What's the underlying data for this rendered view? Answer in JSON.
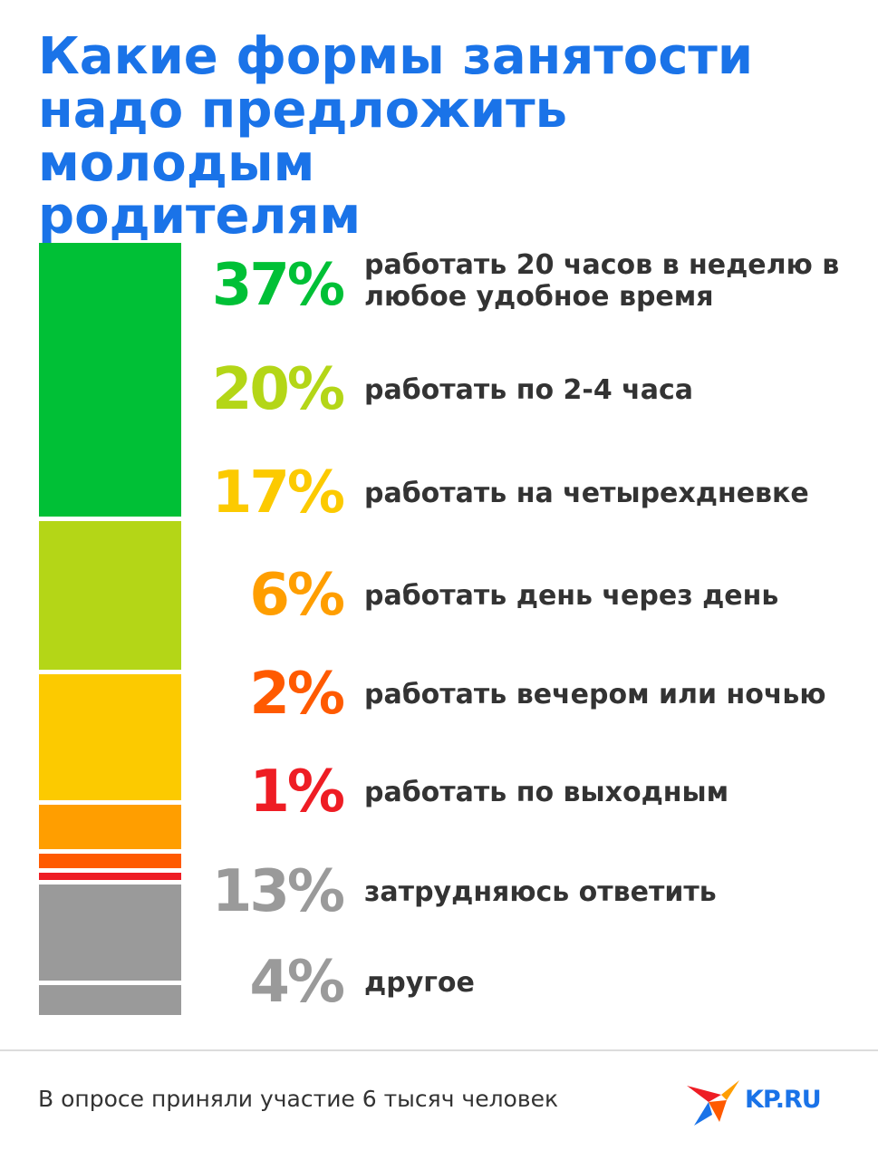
{
  "title_lines": [
    "Какие формы занятости",
    "надо предложить молодым",
    "родителям"
  ],
  "chart_data": {
    "type": "bar",
    "subtype": "stacked-single-column",
    "unit": "%",
    "items": [
      {
        "value": 37,
        "value_label": "37%",
        "label": "работать 20 часов в неделю в любое удобное время",
        "color": "#00c036"
      },
      {
        "value": 20,
        "value_label": "20%",
        "label": "работать по 2-4 часа",
        "color": "#b4d617"
      },
      {
        "value": 17,
        "value_label": "17%",
        "label": "работать на четырехдневке",
        "color": "#fcca00"
      },
      {
        "value": 6,
        "value_label": "6%",
        "label": "работать день через день",
        "color": "#ff9e00"
      },
      {
        "value": 2,
        "value_label": "2%",
        "label": "работать вечером или ночью",
        "color": "#ff5a00"
      },
      {
        "value": 1,
        "value_label": "1%",
        "label": "работать по выходным",
        "color": "#ee1d24"
      },
      {
        "value": 13,
        "value_label": "13%",
        "label": "затрудняюсь ответить",
        "color": "#9a9a9a"
      },
      {
        "value": 4,
        "value_label": "4%",
        "label": "другое",
        "color": "#9a9a9a"
      }
    ]
  },
  "footer": {
    "note": "В опросе приняли участие 6 тысяч человек"
  },
  "logo": {
    "text": "KP.RU",
    "icon": "kp-bird-logo-icon"
  },
  "colors": {
    "title": "#1a73e8",
    "text": "#333333",
    "divider": "#dcdcdc"
  }
}
